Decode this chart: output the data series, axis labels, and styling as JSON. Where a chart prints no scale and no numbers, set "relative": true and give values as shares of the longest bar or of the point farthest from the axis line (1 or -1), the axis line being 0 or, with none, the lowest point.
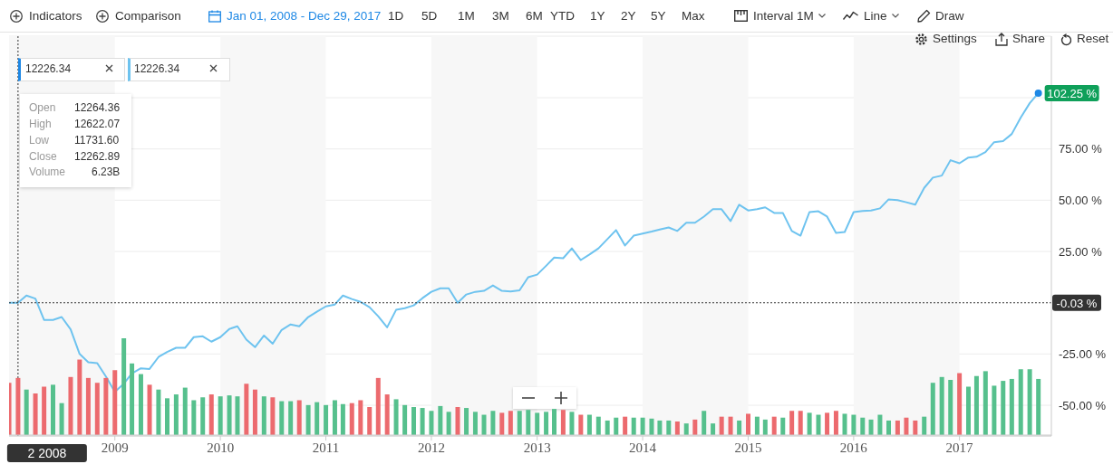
{
  "chart_data": [
    {
      "type": "line",
      "ylim": [
        -65,
        130
      ],
      "yticks": [
        {
          "value": -50,
          "label": "-50.00 %"
        },
        {
          "value": -25,
          "label": "-25.00 %"
        },
        {
          "value": 25,
          "label": "25.00 %"
        },
        {
          "value": 50,
          "label": "50.00 %"
        },
        {
          "value": 75,
          "label": "75.00 %"
        },
        {
          "value": 100,
          "label": null
        }
      ],
      "xlim": [
        "2008-01",
        "2017-11-15"
      ],
      "xticks": [
        "2009",
        "2010",
        "2011",
        "2012",
        "2013",
        "2014",
        "2015",
        "2016",
        "2017"
      ],
      "grid": "y",
      "marker": "none",
      "line_style": "solid",
      "x": [
        "2008-01",
        "2008-02",
        "2008-03",
        "2008-04",
        "2008-05",
        "2008-06",
        "2008-07",
        "2008-08",
        "2008-09",
        "2008-10",
        "2008-11",
        "2008-12",
        "2009-01",
        "2009-02",
        "2009-03",
        "2009-04",
        "2009-05",
        "2009-06",
        "2009-07",
        "2009-08",
        "2009-09",
        "2009-10",
        "2009-11",
        "2009-12",
        "2010-01",
        "2010-02",
        "2010-03",
        "2010-04",
        "2010-05",
        "2010-06",
        "2010-07",
        "2010-08",
        "2010-09",
        "2010-10",
        "2010-11",
        "2010-12",
        "2011-01",
        "2011-02",
        "2011-03",
        "2011-04",
        "2011-05",
        "2011-06",
        "2011-07",
        "2011-08",
        "2011-09",
        "2011-10",
        "2011-11",
        "2011-12",
        "2012-01",
        "2012-02",
        "2012-03",
        "2012-04",
        "2012-05",
        "2012-06",
        "2012-07",
        "2012-08",
        "2012-09",
        "2012-10",
        "2012-11",
        "2012-12",
        "2013-01",
        "2013-02",
        "2013-03",
        "2013-04",
        "2013-05",
        "2013-06",
        "2013-07",
        "2013-08",
        "2013-09",
        "2013-10",
        "2013-11",
        "2013-12",
        "2014-01",
        "2014-02",
        "2014-03",
        "2014-04",
        "2014-05",
        "2014-06",
        "2014-07",
        "2014-08",
        "2014-09",
        "2014-10",
        "2014-11",
        "2014-12",
        "2015-01",
        "2015-02",
        "2015-03",
        "2015-04",
        "2015-05",
        "2015-06",
        "2015-07",
        "2015-08",
        "2015-09",
        "2015-10",
        "2015-11",
        "2015-12",
        "2016-01",
        "2016-02",
        "2016-03",
        "2016-04",
        "2016-05",
        "2016-06",
        "2016-07",
        "2016-08",
        "2016-09",
        "2016-10",
        "2016-11",
        "2016-12",
        "2017-01",
        "2017-02",
        "2017-03",
        "2017-04",
        "2017-05",
        "2017-06",
        "2017-07",
        "2017-08",
        "2017-09",
        "2017-10"
      ],
      "series": [
        {
          "color": "#6ec3ef",
          "values": [
            0,
            0,
            3.5,
            2,
            -8.4,
            -8.4,
            -7,
            -13,
            -25,
            -29,
            -29.5,
            -36,
            -43.5,
            -39.5,
            -34.5,
            -32,
            -32.3,
            -26.5,
            -24,
            -22,
            -22,
            -16.8,
            -16.4,
            -19,
            -16.8,
            -12.8,
            -11.5,
            -18,
            -21.7,
            -16,
            -20,
            -13.3,
            -10.6,
            -11.5,
            -7,
            -4.4,
            -1.8,
            -0.9,
            3.5,
            1.8,
            0.4,
            -2.2,
            -6.6,
            -12,
            -3.5,
            -2.7,
            -1.3,
            2.2,
            5.3,
            7,
            7,
            0,
            4,
            5.3,
            5.8,
            8.4,
            5.8,
            5.5,
            6,
            12.4,
            13.7,
            18,
            22,
            21.7,
            26.5,
            20.8,
            23.5,
            26.5,
            31,
            35.4,
            27.9,
            32.7,
            33.7,
            34.7,
            35.7,
            36.7,
            35,
            39,
            39,
            42,
            45.6,
            45.6,
            39.8,
            47.8,
            45,
            45.6,
            46.5,
            43.8,
            43.8,
            35,
            32.7,
            44.2,
            44.6,
            42,
            34,
            34.5,
            44.2,
            44.7,
            45,
            46,
            50.4,
            50,
            49,
            47.8,
            56,
            61,
            62,
            69.5,
            68,
            70.8,
            71.2,
            73.5,
            78.3,
            78.8,
            82.3,
            90.3,
            97.3,
            102.25
          ]
        }
      ],
      "bands": [
        {
          "axis": "x",
          "from": "2008",
          "to": "2009",
          "color": "#f7f7f7"
        },
        {
          "axis": "x",
          "from": "2010",
          "to": "2011",
          "color": "#f7f7f7"
        },
        {
          "axis": "x",
          "from": "2012",
          "to": "2013",
          "color": "#f7f7f7"
        },
        {
          "axis": "x",
          "from": "2014",
          "to": "2015",
          "color": "#f7f7f7"
        },
        {
          "axis": "x",
          "from": "2016",
          "to": "2017",
          "color": "#f7f7f7"
        }
      ],
      "ref_lines": [
        {
          "axis": "y",
          "value": -0.03,
          "label": "-0.03 %",
          "color": "#333333",
          "line_style": "dotted"
        },
        {
          "axis": "x",
          "value": "2008-02",
          "label": "2 2008",
          "color": "#333333",
          "line_style": "dotted"
        }
      ],
      "annotations": [
        "Indicators",
        "Comparison",
        "Jan 01, 2008 - Dec 29, 2017",
        "1D",
        "5D",
        "1M",
        "3M",
        "6M",
        "YTD",
        "1Y",
        "2Y",
        "5Y",
        "Max",
        "Interval 1M",
        "Line",
        "Draw",
        "Settings",
        "Share",
        "Reset",
        "12226.34",
        "12226.34",
        "Open",
        "12264.36",
        "High",
        "12622.07",
        "Low",
        "11731.60",
        "Close",
        "12262.89",
        "Volume",
        "6.23B",
        {
          "text": "102.25 %",
          "x": "2017-10",
          "y": 102.25
        }
      ]
    },
    {
      "type": "bar",
      "relative": true,
      "xlim": [
        "2008-01",
        "2017-11-15"
      ],
      "x": [
        "2008-01",
        "2008-02",
        "2008-03",
        "2008-04",
        "2008-05",
        "2008-06",
        "2008-07",
        "2008-08",
        "2008-09",
        "2008-10",
        "2008-11",
        "2008-12",
        "2009-01",
        "2009-02",
        "2009-03",
        "2009-04",
        "2009-05",
        "2009-06",
        "2009-07",
        "2009-08",
        "2009-09",
        "2009-10",
        "2009-11",
        "2009-12",
        "2010-01",
        "2010-02",
        "2010-03",
        "2010-04",
        "2010-05",
        "2010-06",
        "2010-07",
        "2010-08",
        "2010-09",
        "2010-10",
        "2010-11",
        "2010-12",
        "2011-01",
        "2011-02",
        "2011-03",
        "2011-04",
        "2011-05",
        "2011-06",
        "2011-07",
        "2011-08",
        "2011-09",
        "2011-10",
        "2011-11",
        "2011-12",
        "2012-01",
        "2012-02",
        "2012-03",
        "2012-04",
        "2012-05",
        "2012-06",
        "2012-07",
        "2012-08",
        "2012-09",
        "2012-10",
        "2012-11",
        "2012-12",
        "2013-01",
        "2013-02",
        "2013-03",
        "2013-04",
        "2013-05",
        "2013-06",
        "2013-07",
        "2013-08",
        "2013-09",
        "2013-10",
        "2013-11",
        "2013-12",
        "2014-01",
        "2014-02",
        "2014-03",
        "2014-04",
        "2014-05",
        "2014-06",
        "2014-07",
        "2014-08",
        "2014-09",
        "2014-10",
        "2014-11",
        "2014-12",
        "2015-01",
        "2015-02",
        "2015-03",
        "2015-04",
        "2015-05",
        "2015-06",
        "2015-07",
        "2015-08",
        "2015-09",
        "2015-10",
        "2015-11",
        "2015-12",
        "2016-01",
        "2016-02",
        "2016-03",
        "2016-04",
        "2016-05",
        "2016-06",
        "2016-07",
        "2016-08",
        "2016-09",
        "2016-10",
        "2016-11",
        "2016-12",
        "2017-01",
        "2017-02",
        "2017-03",
        "2017-04",
        "2017-05",
        "2017-06",
        "2017-07",
        "2017-08",
        "2017-09",
        "2017-10"
      ],
      "values": [
        0.54,
        0.59,
        0.47,
        0.43,
        0.5,
        0.52,
        0.33,
        0.6,
        0.78,
        0.59,
        0.54,
        0.59,
        0.67,
        1,
        0.74,
        0.63,
        0.52,
        0.47,
        0.38,
        0.42,
        0.49,
        0.36,
        0.39,
        0.42,
        0.4,
        0.41,
        0.4,
        0.53,
        0.47,
        0.4,
        0.39,
        0.35,
        0.35,
        0.36,
        0.31,
        0.34,
        0.31,
        0.36,
        0.32,
        0.33,
        0.36,
        0.29,
        0.59,
        0.42,
        0.37,
        0.31,
        0.29,
        0.28,
        0.25,
        0.3,
        0.24,
        0.29,
        0.28,
        0.24,
        0.21,
        0.25,
        0.23,
        0.25,
        0.25,
        0.26,
        0.23,
        0.24,
        0.27,
        0.26,
        0.24,
        0.21,
        0.21,
        0.19,
        0.15,
        0.18,
        0.19,
        0.18,
        0.18,
        0.17,
        0.15,
        0.15,
        0.14,
        0.12,
        0.16,
        0.25,
        0.12,
        0.19,
        0.19,
        0.15,
        0.22,
        0.19,
        0.16,
        0.19,
        0.18,
        0.25,
        0.25,
        0.23,
        0.21,
        0.23,
        0.25,
        0.22,
        0.21,
        0.18,
        0.16,
        0.21,
        0.15,
        0.15,
        0.18,
        0.15,
        0.19,
        0.54,
        0.6,
        0.57,
        0.64,
        0.5,
        0.61,
        0.66,
        0.51,
        0.56,
        0.58,
        0.68,
        0.68,
        0.58
      ],
      "colors": [
        "#ec6a6e",
        "#ec6a6e",
        "#56c08d",
        "#ec6a6e",
        "#ec6a6e",
        "#56c08d",
        "#56c08d",
        "#ec6a6e",
        "#ec6a6e",
        "#ec6a6e",
        "#ec6a6e",
        "#ec6a6e",
        "#ec6a6e",
        "#56c08d",
        "#56c08d",
        "#56c08d",
        "#ec6a6e",
        "#56c08d",
        "#56c08d",
        "#56c08d",
        "#56c08d",
        "#56c08d",
        "#56c08d",
        "#ec6a6e",
        "#56c08d",
        "#56c08d",
        "#56c08d",
        "#ec6a6e",
        "#ec6a6e",
        "#56c08d",
        "#ec6a6e",
        "#56c08d",
        "#56c08d",
        "#ec6a6e",
        "#56c08d",
        "#56c08d",
        "#56c08d",
        "#56c08d",
        "#56c08d",
        "#ec6a6e",
        "#ec6a6e",
        "#ec6a6e",
        "#ec6a6e",
        "#ec6a6e",
        "#56c08d",
        "#56c08d",
        "#56c08d",
        "#56c08d",
        "#56c08d",
        "#56c08d",
        "#56c08d",
        "#ec6a6e",
        "#56c08d",
        "#56c08d",
        "#56c08d",
        "#56c08d",
        "#ec6a6e",
        "#ec6a6e",
        "#56c08d",
        "#56c08d",
        "#56c08d",
        "#56c08d",
        "#56c08d",
        "#ec6a6e",
        "#56c08d",
        "#ec6a6e",
        "#56c08d",
        "#56c08d",
        "#56c08d",
        "#56c08d",
        "#ec6a6e",
        "#56c08d",
        "#56c08d",
        "#56c08d",
        "#56c08d",
        "#56c08d",
        "#ec6a6e",
        "#56c08d",
        "#ec6a6e",
        "#56c08d",
        "#56c08d",
        "#ec6a6e",
        "#ec6a6e",
        "#56c08d",
        "#ec6a6e",
        "#56c08d",
        "#56c08d",
        "#ec6a6e",
        "#56c08d",
        "#ec6a6e",
        "#ec6a6e",
        "#56c08d",
        "#56c08d",
        "#ec6a6e",
        "#ec6a6e",
        "#56c08d",
        "#56c08d",
        "#56c08d",
        "#56c08d",
        "#56c08d",
        "#56c08d",
        "#ec6a6e",
        "#ec6a6e",
        "#ec6a6e",
        "#56c08d",
        "#56c08d",
        "#56c08d",
        "#56c08d",
        "#ec6a6e",
        "#56c08d",
        "#56c08d",
        "#56c08d",
        "#56c08d",
        "#56c08d",
        "#56c08d",
        "#56c08d",
        "#56c08d",
        "#56c08d"
      ]
    }
  ]
}
